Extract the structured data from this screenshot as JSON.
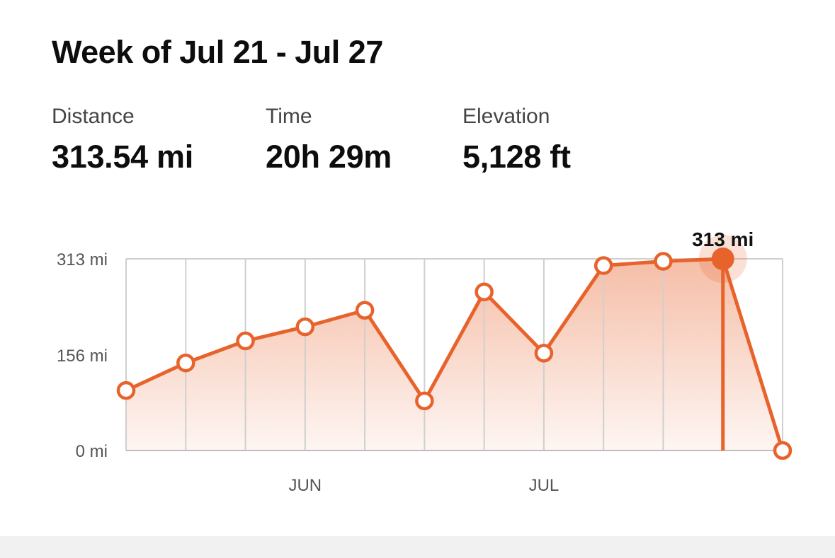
{
  "header": {
    "title": "Week of Jul 21 - Jul 27"
  },
  "stats": {
    "distance": {
      "label": "Distance",
      "value": "313.54 mi"
    },
    "time": {
      "label": "Time",
      "value": "20h 29m"
    },
    "elevation": {
      "label": "Elevation",
      "value": "5,128 ft"
    }
  },
  "colors": {
    "accent": "#e8632c",
    "grid": "#cfcfcf",
    "axis_text": "#555555"
  },
  "chart_data": {
    "type": "line",
    "title": "",
    "xlabel": "",
    "ylabel": "",
    "ylim": [
      0,
      313
    ],
    "ytick_labels": [
      "313 mi",
      "156 mi",
      "0 mi"
    ],
    "ytick_values": [
      313,
      156,
      0
    ],
    "xtick_labels": [
      {
        "label": "JUN",
        "index": 3
      },
      {
        "label": "JUL",
        "index": 7
      }
    ],
    "grid": true,
    "fill": "gradient-area",
    "values": [
      98,
      143,
      179,
      202,
      229,
      81,
      259,
      159,
      302,
      309,
      313,
      0
    ],
    "selected_index": 10,
    "selected_label": "313 mi"
  }
}
